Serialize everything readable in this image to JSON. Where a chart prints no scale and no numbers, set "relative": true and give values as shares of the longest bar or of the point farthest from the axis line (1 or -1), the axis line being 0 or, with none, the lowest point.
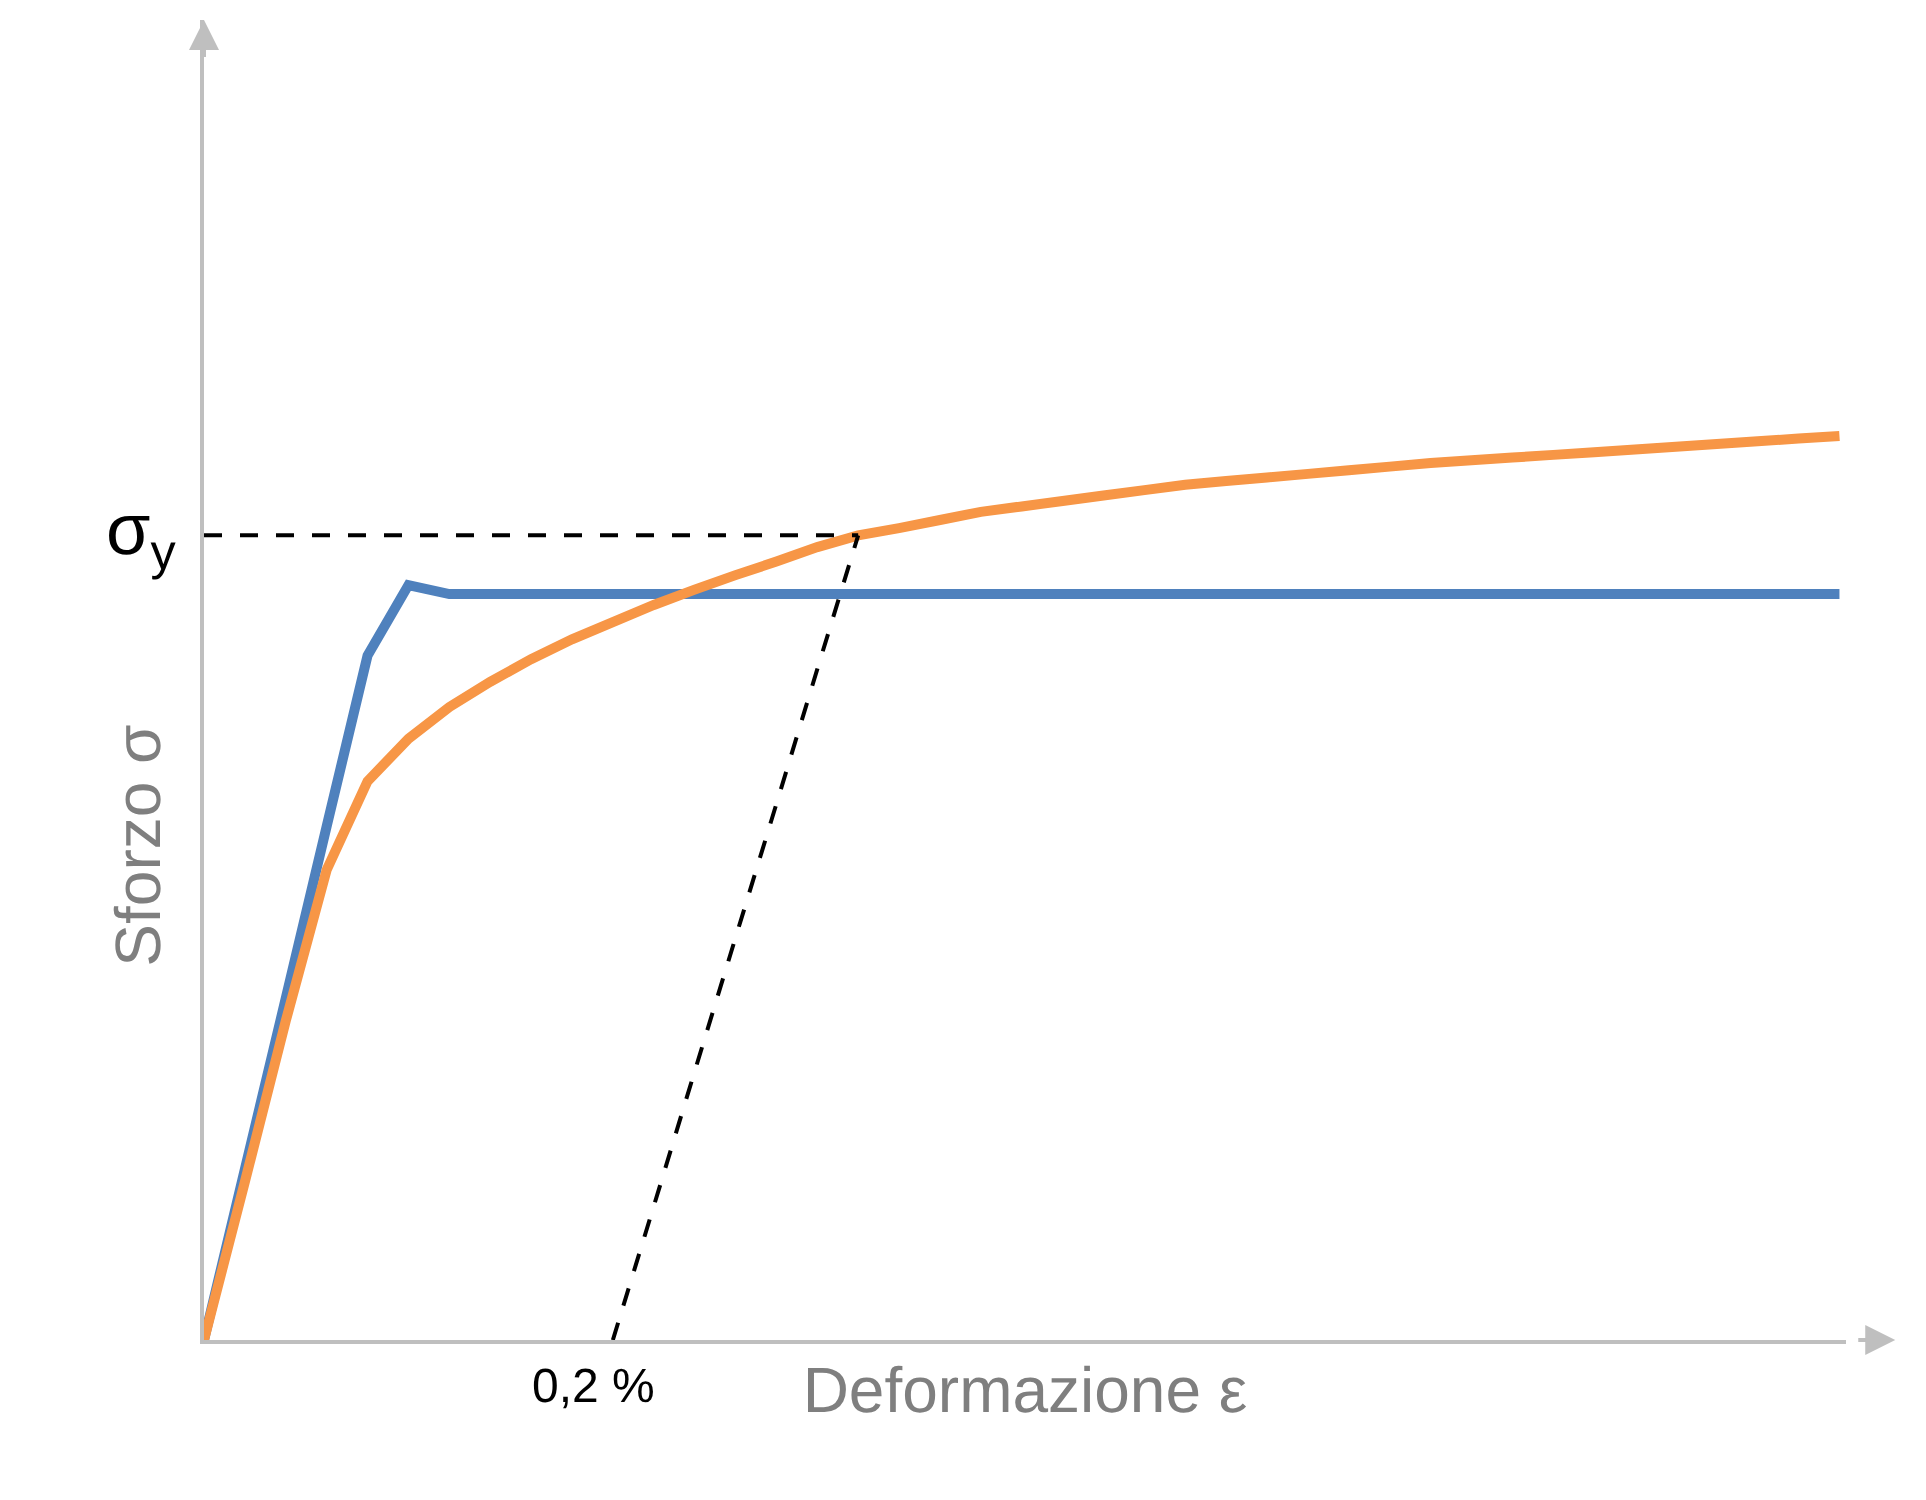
{
  "chart_data": {
    "type": "line",
    "relative": true,
    "xlabel": "Deformazione ε",
    "ylabel": "Sforzo σ",
    "marker": "none",
    "categories": [
      null,
      null,
      null,
      null,
      null,
      null,
      null,
      null,
      null,
      null,
      null,
      null,
      null,
      null,
      null,
      null,
      null,
      null,
      null,
      null,
      null,
      null,
      null,
      null,
      null,
      null,
      null,
      null,
      null,
      null,
      null,
      null,
      null,
      null,
      null,
      null,
      null,
      null,
      null,
      null,
      null
    ],
    "annotations": [
      "σ$_{y}$",
      "0,2 %"
    ],
    "series": [
      {
        "color": "#4f81bd",
        "values": [
          0,
          0.189,
          0.378,
          0.568,
          0.757,
          0.835,
          0.825,
          0.825,
          0.825,
          0.825,
          0.825,
          0.825,
          0.825,
          0.825,
          0.825,
          0.825,
          0.825,
          0.825,
          0.825,
          0.825,
          0.825,
          0.825,
          0.825,
          0.825,
          0.825,
          0.825,
          0.825,
          0.825,
          0.825,
          0.825,
          0.825,
          0.825,
          0.825,
          0.825,
          0.825,
          0.825,
          0.825,
          0.825,
          0.825,
          0.825,
          0.825
        ]
      },
      {
        "color": "#f79646",
        "values": [
          0,
          0.175,
          0.353,
          0.52,
          0.618,
          0.665,
          0.7,
          0.728,
          0.753,
          0.775,
          0.794,
          0.813,
          0.83,
          0.846,
          0.861,
          0.877,
          0.89,
          0.898,
          0.907,
          0.916,
          0.922,
          0.928,
          0.934,
          0.94,
          0.946,
          0.95,
          0.954,
          0.958,
          0.962,
          0.966,
          0.97,
          0.973,
          0.976,
          0.979,
          0.982,
          0.985,
          0.988,
          0.991,
          0.994,
          0.997,
          1.0
        ]
      },
      {
        "color": "#000000",
        "line_style": "dashed",
        "values": [
          0.89,
          0.89,
          0.89,
          0.89,
          0.89,
          0.89,
          0.89,
          0.89,
          0.89,
          0.89,
          0.89,
          0.89,
          0.89,
          0.89,
          0.89,
          0.89,
          0.89,
          null,
          null,
          null,
          null,
          null,
          null,
          null,
          null,
          null,
          null,
          null,
          null,
          null,
          null,
          null,
          null,
          null,
          null,
          null,
          null,
          null,
          null,
          null,
          null
        ]
      },
      {
        "color": "#000000",
        "line_style": "dashed",
        "values": [
          null,
          null,
          null,
          null,
          null,
          null,
          null,
          null,
          null,
          null,
          0,
          0.148,
          0.297,
          0.445,
          0.593,
          0.742,
          0.89,
          null,
          null,
          null,
          null,
          null,
          null,
          null,
          null,
          null,
          null,
          null,
          null,
          null,
          null,
          null,
          null,
          null,
          null,
          null,
          null,
          null,
          null,
          null,
          null
        ]
      }
    ]
  }
}
